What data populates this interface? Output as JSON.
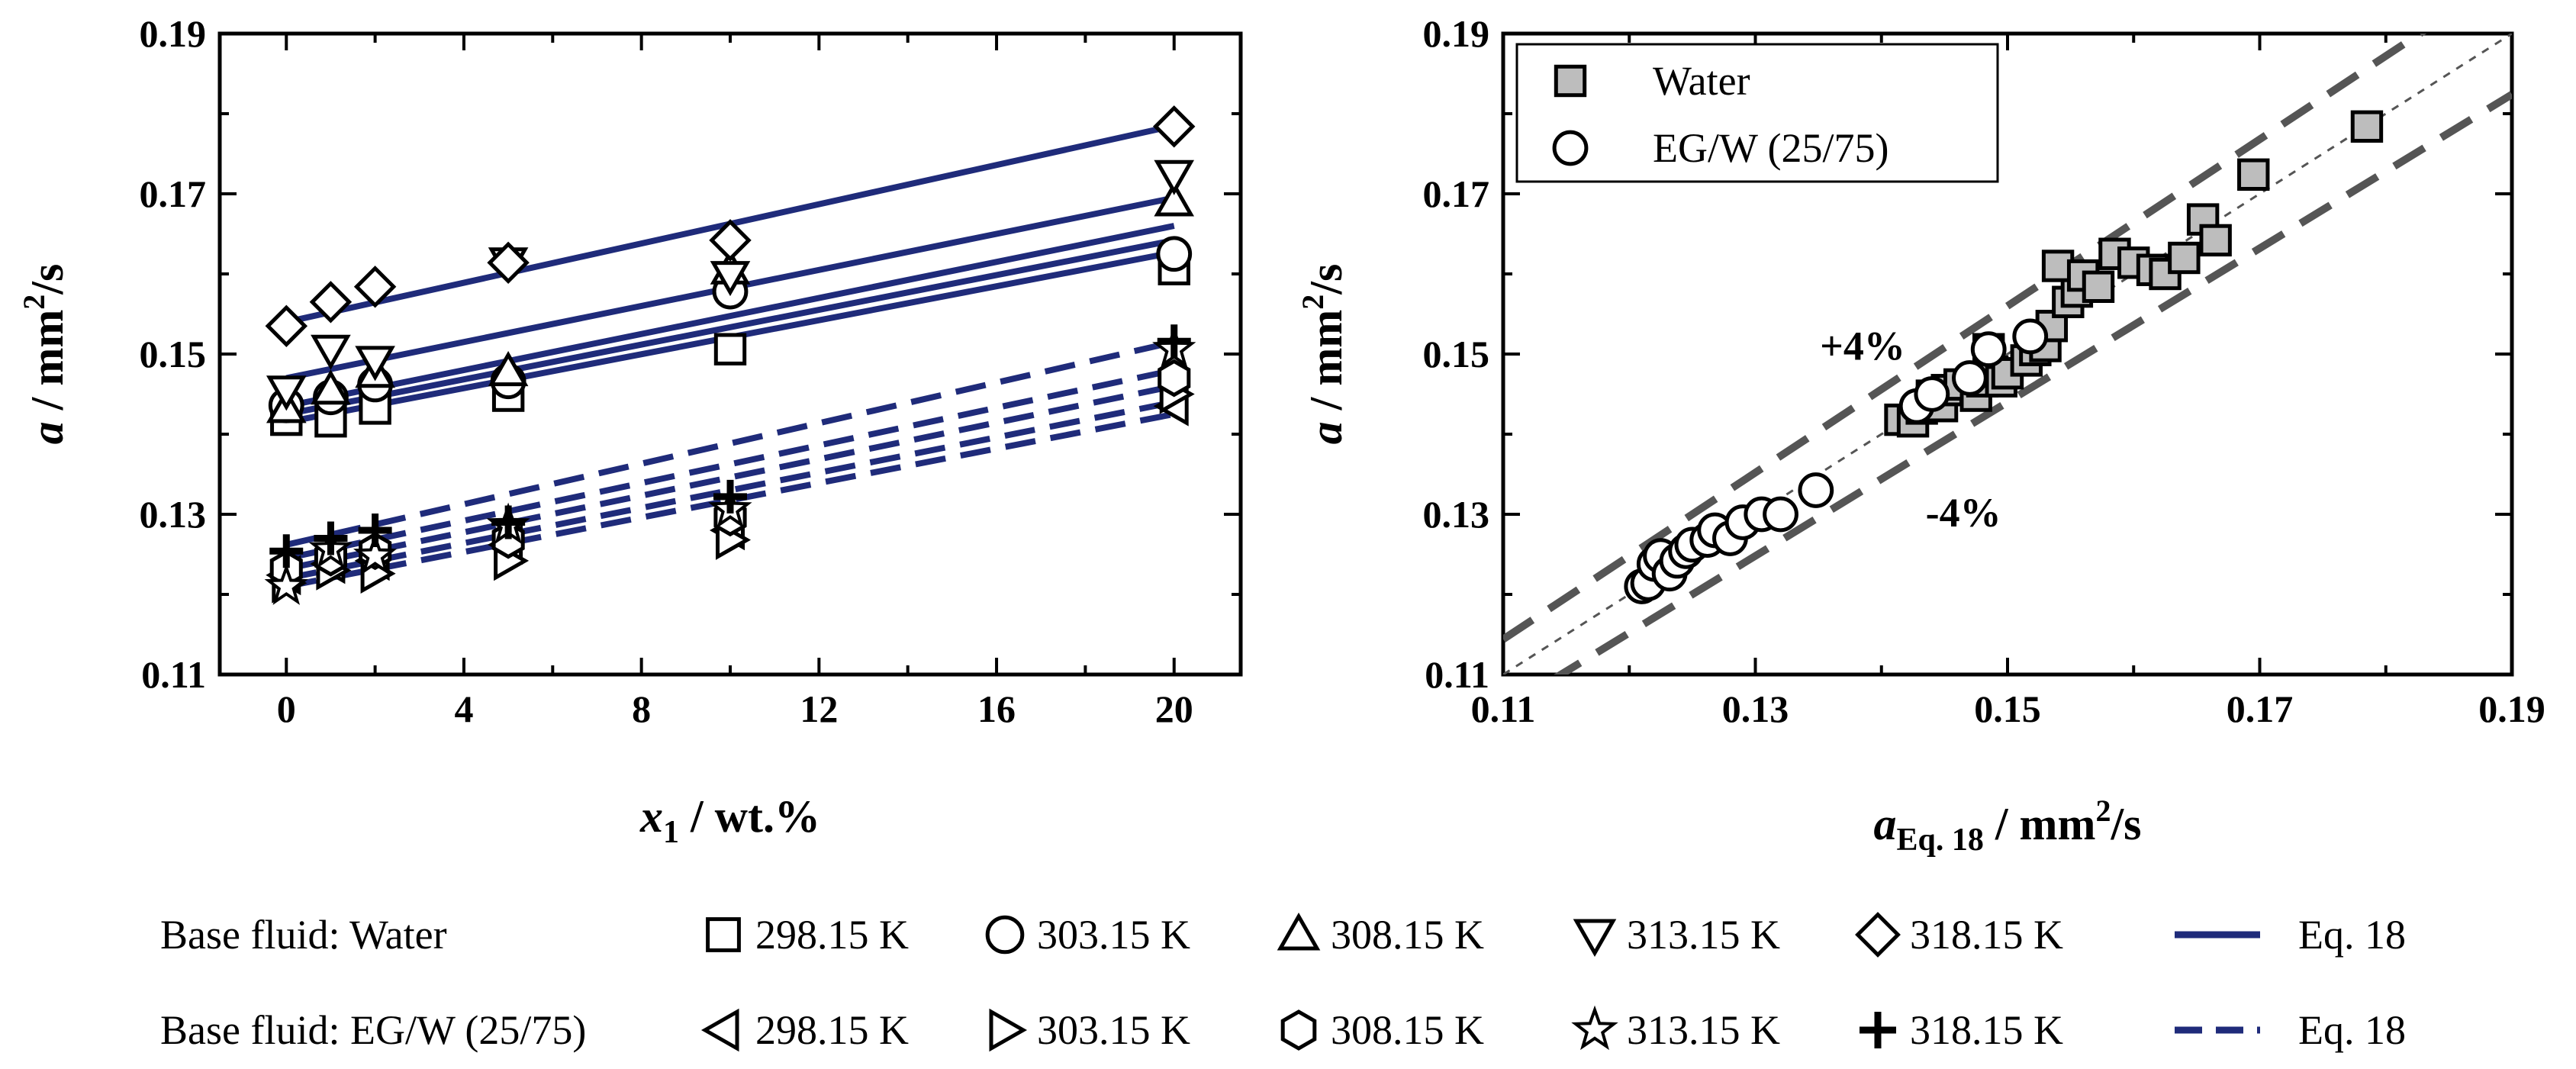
{
  "chart_data": [
    {
      "id": "left",
      "type": "scatter",
      "xlabel": {
        "var": "x",
        "sub": "1",
        "rest": " / wt.%"
      },
      "ylabel": {
        "var": "a",
        "rest": " / mm",
        "sup": "2",
        "rest2": "/s"
      },
      "xlim": [
        -1.5,
        21.5
      ],
      "ylim": [
        0.11,
        0.19
      ],
      "xticks": [
        0,
        4,
        8,
        12,
        16,
        20
      ],
      "xtick_labels": [
        "0",
        "4",
        "8",
        "12",
        "16",
        "20"
      ],
      "yticks": [
        0.11,
        0.13,
        0.15,
        0.17,
        0.19
      ],
      "ytick_labels": [
        "0.11",
        "0.13",
        "0.15",
        "0.17",
        "0.19"
      ],
      "grid": false,
      "line_color": "#1f2b7a",
      "x": [
        0,
        1,
        2,
        5,
        10,
        20
      ],
      "series": [
        {
          "name": "298.15 K",
          "group": "Water",
          "marker": "square",
          "values": [
            0.1418,
            0.1416,
            0.1432,
            0.1448,
            0.1506,
            0.1606
          ],
          "fit": [
            0.1415,
            0.1627
          ]
        },
        {
          "name": "303.15 K",
          "group": "Water",
          "marker": "circle",
          "values": [
            0.1436,
            0.1446,
            0.1462,
            0.1466,
            0.1578,
            0.1625
          ],
          "fit": [
            0.1425,
            0.1642
          ]
        },
        {
          "name": "308.15 K",
          "group": "Water",
          "marker": "triangle-up",
          "values": [
            0.1432,
            0.1455,
            0.1476,
            0.1478,
            0.1605,
            0.169
          ],
          "fit": [
            0.1435,
            0.166
          ]
        },
        {
          "name": "313.15 K",
          "group": "Water",
          "marker": "triangle-down",
          "values": [
            0.1455,
            0.1506,
            0.1492,
            0.1615,
            0.1598,
            0.1724
          ],
          "fit": [
            0.147,
            0.1695
          ]
        },
        {
          "name": "318.15 K",
          "group": "Water",
          "marker": "diamond",
          "values": [
            0.1535,
            0.1565,
            0.1584,
            0.1614,
            0.1642,
            0.1784
          ],
          "fit": [
            0.154,
            0.1785
          ]
        },
        {
          "name": "298.15 K",
          "group": "EG/W (25/75)",
          "marker": "triangle-left",
          "values": [
            0.1224,
            0.1238,
            0.1242,
            0.1262,
            0.128,
            0.1435
          ],
          "fit": [
            0.121,
            0.1425
          ]
        },
        {
          "name": "303.15 K",
          "group": "EG/W (25/75)",
          "marker": "triangle-right",
          "values": [
            0.1214,
            0.123,
            0.1226,
            0.1242,
            0.1268,
            0.145
          ],
          "fit": [
            0.122,
            0.144
          ]
        },
        {
          "name": "308.15 K",
          "group": "EG/W (25/75)",
          "marker": "hexagon",
          "values": [
            0.1232,
            0.1246,
            0.1254,
            0.1268,
            0.1296,
            0.147
          ],
          "fit": [
            0.1232,
            0.146
          ]
        },
        {
          "name": "313.15 K",
          "group": "EG/W (25/75)",
          "marker": "star",
          "values": [
            0.121,
            0.1256,
            0.1248,
            0.1286,
            0.1306,
            0.1506
          ],
          "fit": [
            0.1245,
            0.148
          ]
        },
        {
          "name": "318.15 K",
          "group": "EG/W (25/75)",
          "marker": "plus",
          "values": [
            0.1254,
            0.127,
            0.128,
            0.129,
            0.1322,
            0.1516
          ],
          "fit": [
            0.1262,
            0.1515
          ]
        }
      ]
    },
    {
      "id": "right",
      "type": "scatter",
      "xlabel": {
        "var": "a",
        "sub": "Eq. 18",
        "rest": " / mm",
        "sup": "2",
        "rest2": "/s"
      },
      "ylabel": {
        "var": "a",
        "rest": " / mm",
        "sup": "2",
        "rest2": "/s"
      },
      "xlim": [
        0.11,
        0.19
      ],
      "ylim": [
        0.11,
        0.19
      ],
      "xticks": [
        0.11,
        0.13,
        0.15,
        0.17,
        0.19
      ],
      "xtick_labels": [
        "0.11",
        "0.13",
        "0.15",
        "0.17",
        "0.19"
      ],
      "yticks": [
        0.11,
        0.13,
        0.15,
        0.17,
        0.19
      ],
      "ytick_labels": [
        "0.11",
        "0.13",
        "0.15",
        "0.17",
        "0.19"
      ],
      "grid": false,
      "legend": {
        "placement": "top-left",
        "entries": [
          {
            "label": "Water",
            "marker": "square-gray"
          },
          {
            "label": "EG/W (25/75)",
            "marker": "circle-white"
          }
        ]
      },
      "annotations": [
        {
          "text": "+4%",
          "x": 0.1385,
          "y": 0.1493
        },
        {
          "text": "-4%",
          "x": 0.1465,
          "y": 0.1285
        }
      ],
      "diagonal": [
        0.11,
        0.19
      ],
      "band_upper_factor": 1.04,
      "band_lower_factor": 0.96,
      "series": [
        {
          "name": "Water",
          "marker": "square-gray",
          "points": [
            [
              0.1415,
              0.1418
            ],
            [
              0.1425,
              0.1416
            ],
            [
              0.1432,
              0.1432
            ],
            [
              0.144,
              0.1448
            ],
            [
              0.1448,
              0.1435
            ],
            [
              0.1452,
              0.1455
            ],
            [
              0.1462,
              0.1462
            ],
            [
              0.1475,
              0.1448
            ],
            [
              0.148,
              0.1466
            ],
            [
              0.1488,
              0.1478
            ],
            [
              0.1495,
              0.1466
            ],
            [
              0.1485,
              0.1506
            ],
            [
              0.15,
              0.1476
            ],
            [
              0.1515,
              0.1492
            ],
            [
              0.1522,
              0.1505
            ],
            [
              0.153,
              0.151
            ],
            [
              0.1535,
              0.1535
            ],
            [
              0.1548,
              0.1565
            ],
            [
              0.1555,
              0.1578
            ],
            [
              0.154,
              0.161
            ],
            [
              0.156,
              0.1598
            ],
            [
              0.1572,
              0.1584
            ],
            [
              0.1585,
              0.1625
            ],
            [
              0.16,
              0.1614
            ],
            [
              0.1615,
              0.1605
            ],
            [
              0.1625,
              0.16
            ],
            [
              0.164,
              0.162
            ],
            [
              0.1655,
              0.1668
            ],
            [
              0.1665,
              0.1642
            ],
            [
              0.1695,
              0.1724
            ],
            [
              0.1785,
              0.1784
            ]
          ]
        },
        {
          "name": "EG/W (25/75)",
          "marker": "circle-white",
          "points": [
            [
              0.121,
              0.121
            ],
            [
              0.1215,
              0.1214
            ],
            [
              0.122,
              0.1238
            ],
            [
              0.1225,
              0.1248
            ],
            [
              0.1232,
              0.1226
            ],
            [
              0.1238,
              0.1242
            ],
            [
              0.1245,
              0.1254
            ],
            [
              0.125,
              0.1262
            ],
            [
              0.1262,
              0.1268
            ],
            [
              0.1268,
              0.128
            ],
            [
              0.128,
              0.127
            ],
            [
              0.129,
              0.129
            ],
            [
              0.1305,
              0.13
            ],
            [
              0.132,
              0.13
            ],
            [
              0.1348,
              0.133
            ],
            [
              0.1428,
              0.1435
            ],
            [
              0.144,
              0.145
            ],
            [
              0.147,
              0.147
            ],
            [
              0.1485,
              0.1506
            ],
            [
              0.1518,
              0.1522
            ]
          ]
        }
      ]
    }
  ],
  "legend": {
    "row1": {
      "label": "Base fluid: Water",
      "items": [
        "298.15 K",
        "303.15 K",
        "308.15 K",
        "313.15 K",
        "318.15 K"
      ],
      "markers": [
        "square",
        "circle",
        "triangle-up",
        "triangle-down",
        "diamond"
      ],
      "line_label": "Eq. 18",
      "line_style": "solid"
    },
    "row2": {
      "label": "Base fluid: EG/W (25/75)",
      "items": [
        "298.15 K",
        "303.15 K",
        "308.15 K",
        "313.15 K",
        "318.15 K"
      ],
      "markers": [
        "triangle-left",
        "triangle-right",
        "hexagon",
        "star",
        "plus"
      ],
      "line_label": "Eq. 18",
      "line_style": "dashed"
    }
  }
}
